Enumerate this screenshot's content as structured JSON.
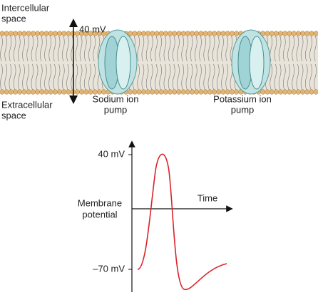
{
  "membrane": {
    "top_label": [
      "Intercellular",
      "space"
    ],
    "bottom_label": [
      "Extracellular",
      "space"
    ],
    "voltage_label": "40 mV",
    "pumps": [
      {
        "label": [
          "Sodium ion",
          "pump"
        ]
      },
      {
        "label": [
          "Potassium ion",
          "pump"
        ]
      }
    ]
  },
  "graph": {
    "y_label": [
      "Membrane",
      "potential"
    ],
    "x_label": "Time",
    "top_tick": "40 mV",
    "bottom_tick": "–70 mV"
  }
}
